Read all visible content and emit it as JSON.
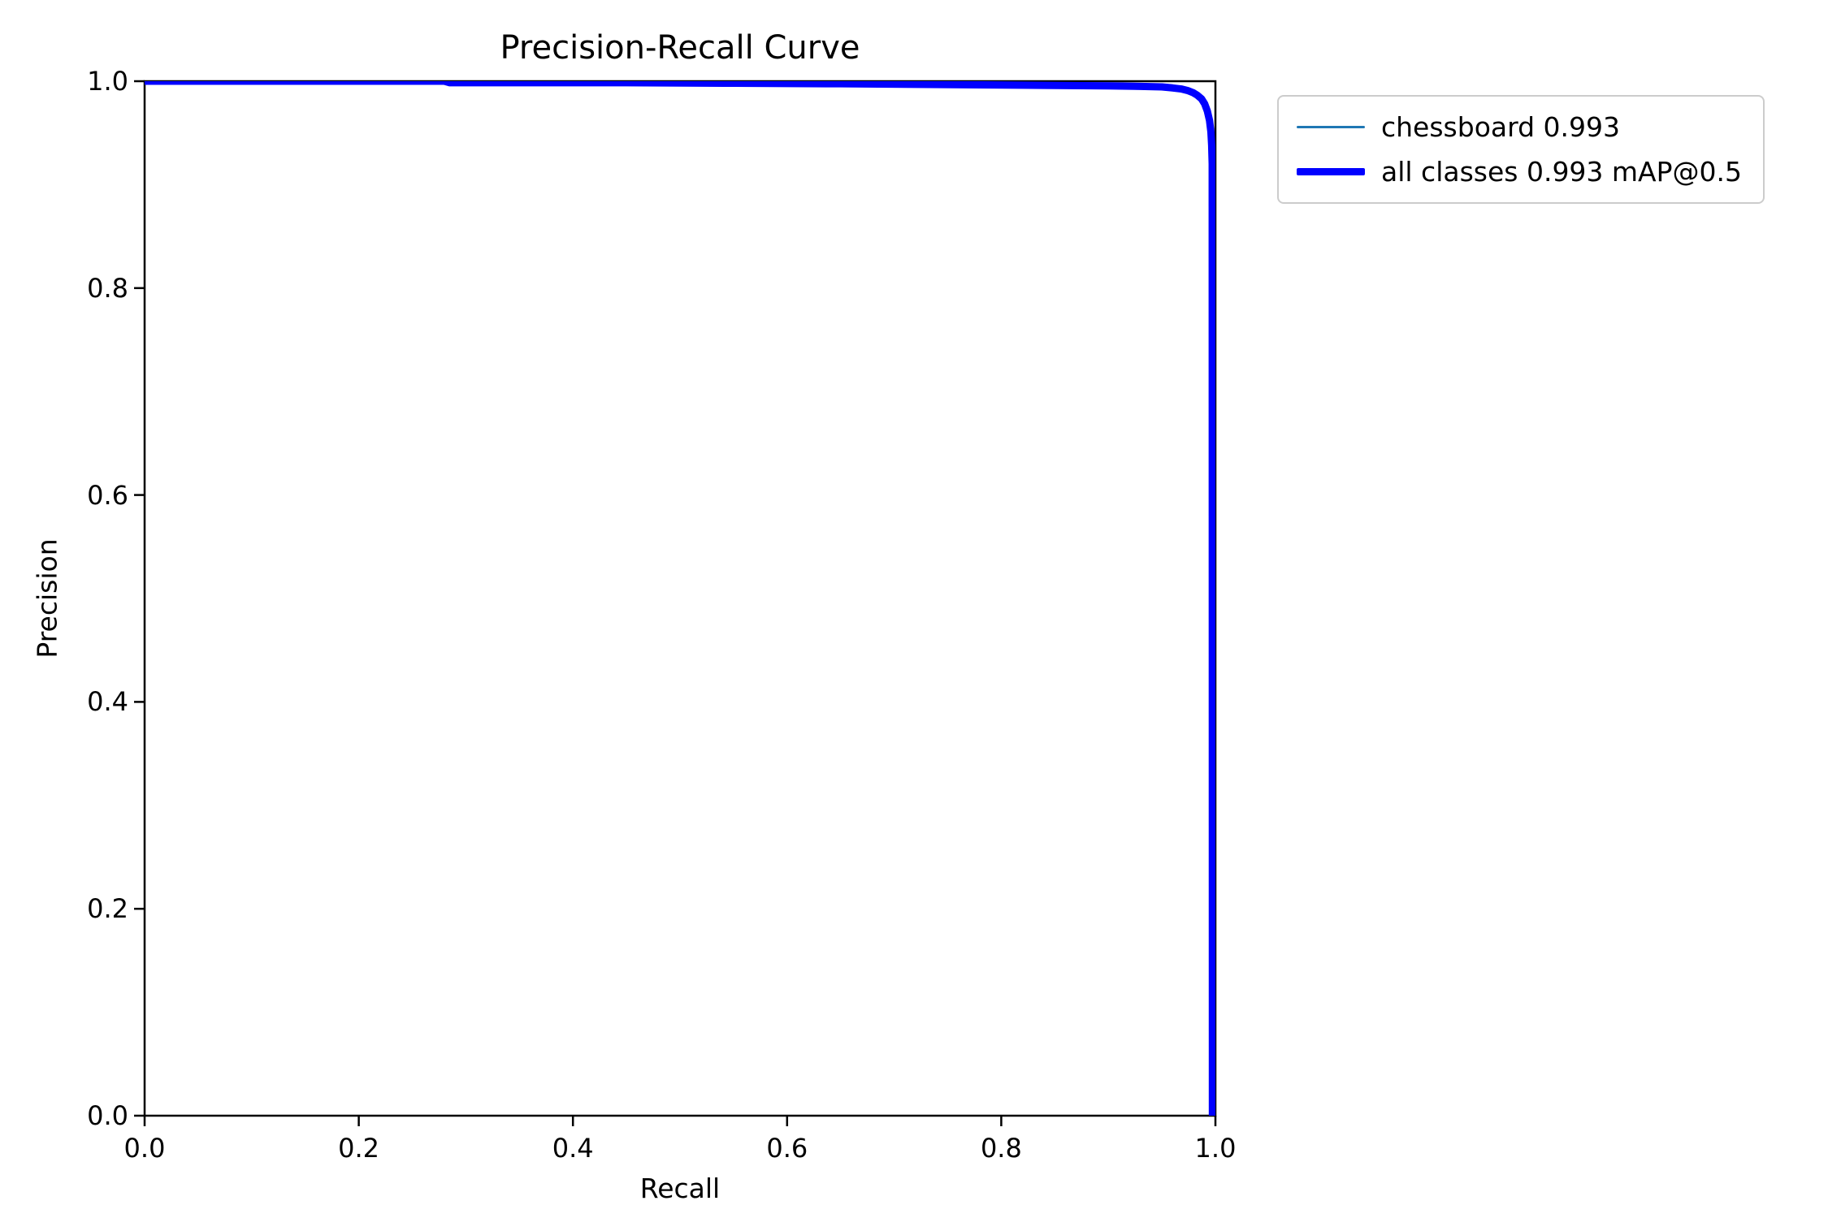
{
  "chart_data": {
    "type": "line",
    "title": "Precision-Recall Curve",
    "xlabel": "Recall",
    "ylabel": "Precision",
    "xlim": [
      0.0,
      1.0
    ],
    "ylim": [
      0.0,
      1.0
    ],
    "x_ticks": [
      0.0,
      0.2,
      0.4,
      0.6,
      0.8,
      1.0
    ],
    "x_tick_labels": [
      "0.0",
      "0.2",
      "0.4",
      "0.6",
      "0.8",
      "1.0"
    ],
    "y_ticks": [
      0.0,
      0.2,
      0.4,
      0.6,
      0.8,
      1.0
    ],
    "y_tick_labels": [
      "0.0",
      "0.2",
      "0.4",
      "0.6",
      "0.8",
      "1.0"
    ],
    "grid": false,
    "legend_position": "outside-upper-right",
    "axis_color": "#000000",
    "background_color": "#ffffff",
    "series": [
      {
        "name": "chessboard 0.993",
        "color": "#1f77b4",
        "width": 2.5,
        "points": [
          [
            0.0,
            1.0
          ],
          [
            0.28,
            1.0
          ],
          [
            0.285,
            0.9985
          ],
          [
            0.45,
            0.9985
          ],
          [
            0.55,
            0.998
          ],
          [
            0.65,
            0.9975
          ],
          [
            0.72,
            0.997
          ],
          [
            0.78,
            0.9965
          ],
          [
            0.84,
            0.996
          ],
          [
            0.9,
            0.9955
          ],
          [
            0.93,
            0.995
          ],
          [
            0.95,
            0.9945
          ],
          [
            0.96,
            0.9935
          ],
          [
            0.968,
            0.9925
          ],
          [
            0.974,
            0.991
          ],
          [
            0.979,
            0.989
          ],
          [
            0.983,
            0.9865
          ],
          [
            0.987,
            0.983
          ],
          [
            0.99,
            0.978
          ],
          [
            0.9925,
            0.971
          ],
          [
            0.9945,
            0.962
          ],
          [
            0.9958,
            0.951
          ],
          [
            0.9965,
            0.938
          ],
          [
            0.997,
            0.92
          ],
          [
            0.9972,
            0.0
          ]
        ]
      },
      {
        "name": "all classes 0.993 mAP@0.5",
        "color": "#0000ff",
        "width": 9,
        "points": [
          [
            0.0,
            1.0
          ],
          [
            0.28,
            1.0
          ],
          [
            0.285,
            0.9985
          ],
          [
            0.45,
            0.9985
          ],
          [
            0.55,
            0.998
          ],
          [
            0.65,
            0.9975
          ],
          [
            0.72,
            0.997
          ],
          [
            0.78,
            0.9965
          ],
          [
            0.84,
            0.996
          ],
          [
            0.9,
            0.9955
          ],
          [
            0.93,
            0.995
          ],
          [
            0.95,
            0.9945
          ],
          [
            0.96,
            0.9935
          ],
          [
            0.968,
            0.9925
          ],
          [
            0.974,
            0.991
          ],
          [
            0.979,
            0.989
          ],
          [
            0.983,
            0.9865
          ],
          [
            0.987,
            0.983
          ],
          [
            0.99,
            0.978
          ],
          [
            0.9925,
            0.971
          ],
          [
            0.9945,
            0.962
          ],
          [
            0.9958,
            0.951
          ],
          [
            0.9965,
            0.938
          ],
          [
            0.997,
            0.92
          ],
          [
            0.9972,
            0.0
          ]
        ]
      }
    ],
    "legend": [
      {
        "label": "chessboard 0.993",
        "color": "#1f77b4",
        "sample_thickness": 3
      },
      {
        "label": "all classes 0.993 mAP@0.5",
        "color": "#0000ff",
        "sample_thickness": 9
      }
    ]
  }
}
